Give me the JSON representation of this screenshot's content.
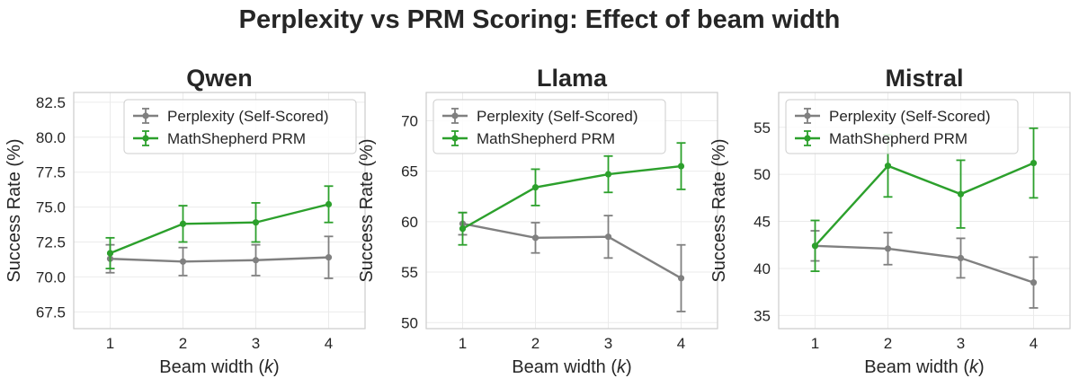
{
  "suptitle": "Perplexity vs PRM Scoring: Effect of beam width",
  "colors": {
    "perplexity": "#808080",
    "prm": "#2ca02c",
    "grid": "#ebebeb",
    "frame": "#cccccc",
    "text": "#262626"
  },
  "chart_data": [
    {
      "type": "line",
      "title": "Qwen",
      "xlabel_prefix": "Beam width (",
      "xlabel_var": "k",
      "xlabel_suffix": ")",
      "ylabel": "Success Rate (%)",
      "x": [
        1,
        2,
        3,
        4
      ],
      "xlim": [
        0.5,
        4.5
      ],
      "ylim": [
        66.3,
        83.2
      ],
      "yticks": [
        67.5,
        70.0,
        72.5,
        75.0,
        77.5,
        80.0,
        82.5
      ],
      "ytick_labels": [
        "67.5",
        "70.0",
        "72.5",
        "75.0",
        "77.5",
        "80.0",
        "82.5"
      ],
      "legend_position": "top-right",
      "series": [
        {
          "name": "Perplexity (Self-Scored)",
          "key": "perplexity",
          "values": [
            71.3,
            71.1,
            71.2,
            71.4
          ],
          "err": [
            1.0,
            1.0,
            1.1,
            1.5
          ]
        },
        {
          "name": "MathShepherd PRM",
          "key": "prm",
          "values": [
            71.7,
            73.8,
            73.9,
            75.2
          ],
          "err": [
            1.1,
            1.3,
            1.4,
            1.3
          ]
        }
      ]
    },
    {
      "type": "line",
      "title": "Llama",
      "xlabel_prefix": "Beam width (",
      "xlabel_var": "k",
      "xlabel_suffix": ")",
      "ylabel": "Success Rate (%)",
      "x": [
        1,
        2,
        3,
        4
      ],
      "xlim": [
        0.5,
        4.5
      ],
      "ylim": [
        49.4,
        72.8
      ],
      "yticks": [
        50,
        55,
        60,
        65,
        70
      ],
      "ytick_labels": [
        "50",
        "55",
        "60",
        "65",
        "70"
      ],
      "legend_position": "top-left",
      "series": [
        {
          "name": "Perplexity (Self-Scored)",
          "key": "perplexity",
          "values": [
            59.8,
            58.4,
            58.5,
            54.4
          ],
          "err": [
            1.1,
            1.5,
            2.1,
            3.3
          ]
        },
        {
          "name": "MathShepherd PRM",
          "key": "prm",
          "values": [
            59.3,
            63.4,
            64.7,
            65.5
          ],
          "err": [
            1.6,
            1.8,
            1.8,
            2.3
          ]
        }
      ]
    },
    {
      "type": "line",
      "title": "Mistral",
      "xlabel_prefix": "Beam width (",
      "xlabel_var": "k",
      "xlabel_suffix": ")",
      "ylabel": "Success Rate (%)",
      "x": [
        1,
        2,
        3,
        4
      ],
      "xlim": [
        0.5,
        4.5
      ],
      "ylim": [
        33.6,
        58.7
      ],
      "yticks": [
        35,
        40,
        45,
        50,
        55
      ],
      "ytick_labels": [
        "35",
        "40",
        "45",
        "50",
        "55"
      ],
      "legend_position": "top-left",
      "series": [
        {
          "name": "Perplexity (Self-Scored)",
          "key": "perplexity",
          "values": [
            42.4,
            42.1,
            41.1,
            38.5
          ],
          "err": [
            1.6,
            1.7,
            2.1,
            2.7
          ]
        },
        {
          "name": "MathShepherd PRM",
          "key": "prm",
          "values": [
            42.4,
            50.9,
            47.9,
            51.2
          ],
          "err": [
            2.7,
            3.3,
            3.6,
            3.7
          ]
        }
      ]
    }
  ]
}
